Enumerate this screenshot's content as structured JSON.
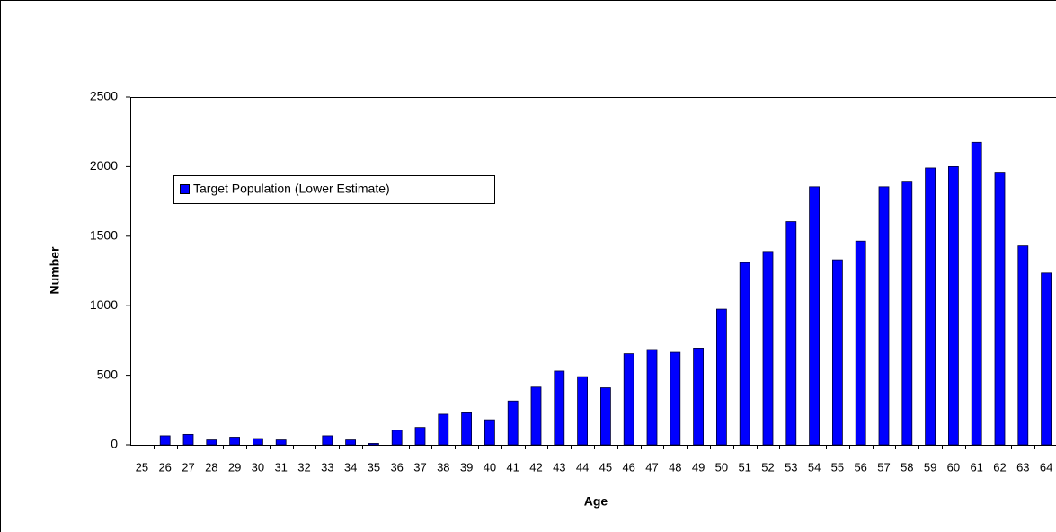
{
  "chart_data": {
    "type": "bar",
    "x_label": "Age",
    "y_label": "Number",
    "categories": [
      "25",
      "26",
      "27",
      "28",
      "29",
      "30",
      "31",
      "32",
      "33",
      "34",
      "35",
      "36",
      "37",
      "38",
      "39",
      "40",
      "41",
      "42",
      "43",
      "44",
      "45",
      "46",
      "47",
      "48",
      "49",
      "50",
      "51",
      "52",
      "53",
      "54",
      "55",
      "56",
      "57",
      "58",
      "59",
      "60",
      "61",
      "62",
      "63",
      "64"
    ],
    "series": [
      {
        "name": "Target Population (Lower Estimate)",
        "color": "#0000ff",
        "values": [
          0,
          65,
          75,
          35,
          55,
          45,
          35,
          0,
          65,
          35,
          10,
          105,
          125,
          220,
          230,
          180,
          315,
          415,
          530,
          490,
          410,
          655,
          685,
          665,
          695,
          975,
          1310,
          1390,
          1605,
          1855,
          1330,
          1465,
          1855,
          1895,
          1990,
          2000,
          2175,
          1960,
          1430,
          1235
        ]
      }
    ],
    "ylim": [
      0,
      2500
    ],
    "yticks": [
      0,
      500,
      1000,
      1500,
      2000,
      2500
    ],
    "grid": false,
    "legend": "upper-left"
  }
}
